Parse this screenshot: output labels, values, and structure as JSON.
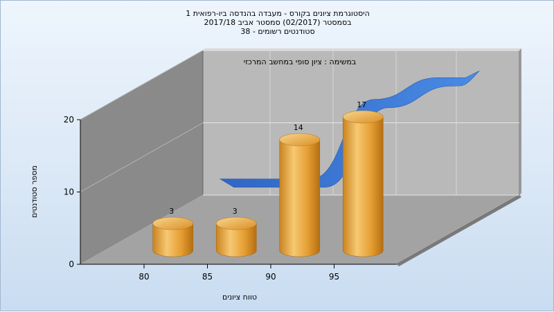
{
  "chart_data": {
    "type": "bar",
    "title_lines": [
      "היסטוגרמת ציונים בקורס - מעבדה בהנדסה ביו-רפואית 1",
      "בסמסטר  (02/2017)  סמסטר אביב 2017/18",
      "סטודנטים רשומים - 38"
    ],
    "subtitle": "במשימה : ציון סופי במחשב המרכזי",
    "xlabel": "טווח ציונים",
    "ylabel": "מספר סטודנטים",
    "categories": [
      "80",
      "85",
      "90",
      "95"
    ],
    "values": [
      3,
      3,
      14,
      17
    ],
    "y_ticks": [
      "0",
      "10",
      "20"
    ],
    "ylim": [
      0,
      20
    ],
    "bar_color": "#e8a23a",
    "ribbon_color": "#3b78d2",
    "grid": true
  }
}
